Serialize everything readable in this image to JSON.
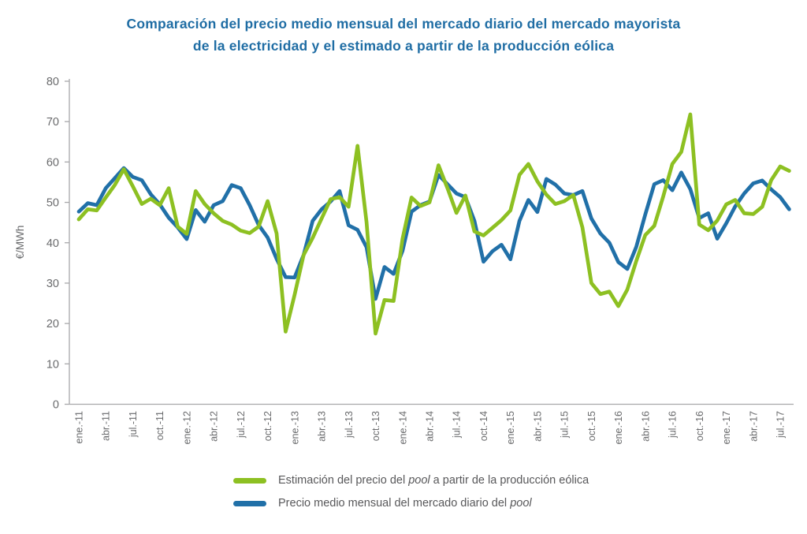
{
  "title": {
    "line1": "Comparación del precio medio mensual del mercado diario del mercado mayorista",
    "line2": "de la electricidad y el estimado a partir de la producción eólica",
    "color": "#1f6da4"
  },
  "chart_data": {
    "type": "line",
    "ylabel": "€/MWh",
    "ylim": [
      0,
      80
    ],
    "yticks": [
      0,
      10,
      20,
      30,
      40,
      50,
      60,
      70,
      80
    ],
    "grid": false,
    "legend_position": "bottom",
    "axis_color": "#a8a8aa",
    "tick_text_color": "#6a6b6d",
    "n_points": 80,
    "x_tick_every": 3,
    "x_tick_labels": [
      "ene.-11",
      "abr.-11",
      "jul.-11",
      "oct.-11",
      "ene.-12",
      "abr.-12",
      "jul.-12",
      "oct.-12",
      "ene.-13",
      "abr.-13",
      "jul.-13",
      "oct.-13",
      "ene.-14",
      "abr.-14",
      "jul.-14",
      "oct.-14",
      "ene.-15",
      "abr.-15",
      "jul.-15",
      "oct.-15",
      "ene.-16",
      "abr.-16",
      "jul.-16",
      "oct.-16",
      "ene.-17",
      "abr.-17",
      "jul.-17"
    ],
    "series": [
      {
        "id": "estimacion",
        "label_pre": "Estimación del precio del ",
        "label_italic": "pool",
        "label_post": " a partir de la producción eólica",
        "color": "#8dc022",
        "values": [
          45.8,
          48.3,
          48,
          51.2,
          54.3,
          58.2,
          54,
          49.6,
          50.9,
          49.3,
          53.5,
          44,
          42.2,
          52.8,
          49.6,
          47.3,
          45.4,
          44.5,
          43,
          42.4,
          44,
          50.3,
          42.3,
          18,
          27.1,
          37,
          41.2,
          46,
          50.8,
          51.3,
          48.9,
          64,
          45.1,
          17.5,
          25.8,
          25.6,
          41,
          51.2,
          49.1,
          50,
          59.2,
          53.5,
          47.4,
          51.7,
          42.8,
          41.8,
          43.7,
          45.6,
          48,
          56.8,
          59.5,
          55.2,
          51.9,
          49.6,
          50.3,
          51.8,
          43.8,
          30,
          27.3,
          27.9,
          24.3,
          28.4,
          35.5,
          41.9,
          44.2,
          51.5,
          59.5,
          62.5,
          71.8,
          44.5,
          43.1,
          45.5,
          49.5,
          50.6,
          47.3,
          47.1,
          48.9,
          55.5,
          58.9,
          57.8
        ]
      },
      {
        "id": "pool",
        "label_pre": "Precio medio mensual del mercado diario del ",
        "label_italic": "pool",
        "label_post": "",
        "color": "#2170a8",
        "values": [
          47.7,
          49.8,
          49.3,
          53.5,
          56,
          58.5,
          56.3,
          55.5,
          52,
          49.5,
          46.2,
          43.8,
          40.9,
          48.1,
          45.2,
          49.3,
          50.3,
          54.3,
          53.5,
          49.3,
          44.4,
          41.3,
          36,
          31.5,
          31.4,
          37,
          45.4,
          48.3,
          50.2,
          52.8,
          44.3,
          43.2,
          38.9,
          26.1,
          34,
          32.3,
          38,
          47.7,
          49.3,
          50.2,
          56.8,
          54.5,
          52.2,
          51.3,
          45.4,
          35.3,
          37.9,
          39.5,
          35.9,
          45.4,
          50.6,
          47.6,
          55.8,
          54.4,
          52.2,
          51.8,
          52.8,
          46,
          42.3,
          40,
          35.2,
          33.5,
          39,
          47,
          54.5,
          55.5,
          53,
          57.4,
          53.3,
          46.1,
          47.3,
          41,
          44.8,
          49,
          52.2,
          54.7,
          55.4,
          53.2,
          51.3,
          48.3
        ]
      }
    ]
  }
}
